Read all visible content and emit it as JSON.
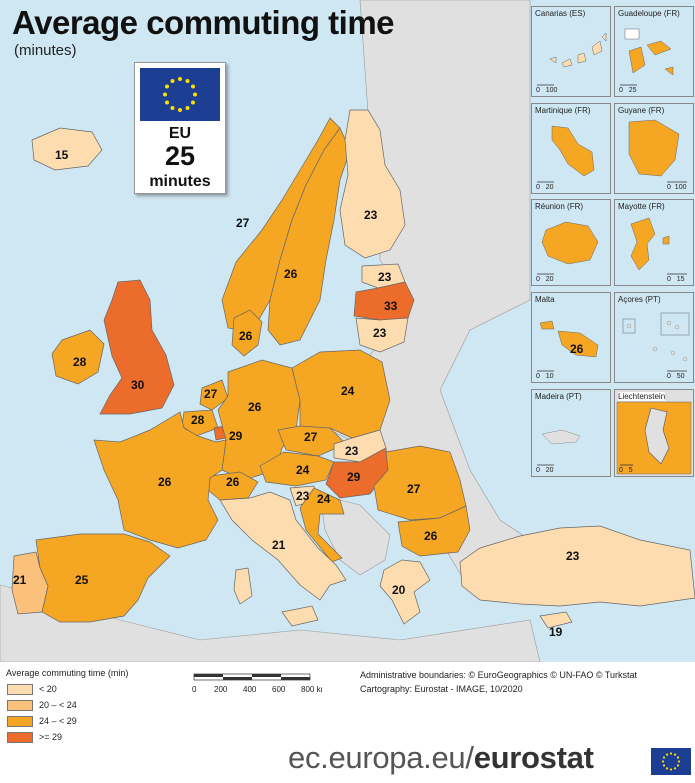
{
  "title": "Average commuting time",
  "subtitle": "(minutes)",
  "eu_box": {
    "code": "EU",
    "value": "25",
    "unit": "minutes"
  },
  "colors": {
    "lt20": "#fddcb0",
    "c20_24": "#fbc07a",
    "c24_29": "#f5a623",
    "ge29": "#ec6c2c",
    "sea": "#cfe7f2",
    "nodata": "#e0e0e0"
  },
  "countries": [
    {
      "name": "Iceland",
      "value": "15"
    },
    {
      "name": "Norway",
      "value": "27"
    },
    {
      "name": "Sweden",
      "value": "26"
    },
    {
      "name": "Finland",
      "value": "23"
    },
    {
      "name": "Estonia",
      "value": "23"
    },
    {
      "name": "Latvia",
      "value": "33"
    },
    {
      "name": "Lithuania",
      "value": "23"
    },
    {
      "name": "Denmark",
      "value": "26"
    },
    {
      "name": "Ireland",
      "value": "28"
    },
    {
      "name": "United Kingdom",
      "value": "30"
    },
    {
      "name": "Netherlands",
      "value": "27"
    },
    {
      "name": "Belgium",
      "value": "28"
    },
    {
      "name": "Luxembourg",
      "value": "29"
    },
    {
      "name": "Germany",
      "value": "26"
    },
    {
      "name": "Poland",
      "value": "24"
    },
    {
      "name": "Czechia",
      "value": "27"
    },
    {
      "name": "Slovakia",
      "value": "23"
    },
    {
      "name": "Austria",
      "value": "24"
    },
    {
      "name": "Hungary",
      "value": "29"
    },
    {
      "name": "Switzerland",
      "value": "26"
    },
    {
      "name": "Slovenia",
      "value": "23"
    },
    {
      "name": "Croatia",
      "value": "24"
    },
    {
      "name": "France",
      "value": "26"
    },
    {
      "name": "Italy",
      "value": "21"
    },
    {
      "name": "Spain",
      "value": "25"
    },
    {
      "name": "Portugal",
      "value": "21"
    },
    {
      "name": "Romania",
      "value": "27"
    },
    {
      "name": "Bulgaria",
      "value": "26"
    },
    {
      "name": "Greece",
      "value": "20"
    },
    {
      "name": "Turkey",
      "value": "23"
    },
    {
      "name": "Cyprus",
      "value": "19"
    }
  ],
  "insets": [
    {
      "title": "Canarias (ES)",
      "scale": [
        "0",
        "100"
      ]
    },
    {
      "title": "Guadeloupe (FR)",
      "scale": [
        "0",
        "25"
      ]
    },
    {
      "title": "Martinique (FR)",
      "scale": [
        "0",
        "20"
      ]
    },
    {
      "title": "Guyane (FR)",
      "scale": [
        "0",
        "100"
      ]
    },
    {
      "title": "Réunion (FR)",
      "scale": [
        "0",
        "20"
      ]
    },
    {
      "title": "Mayotte (FR)",
      "scale": [
        "0",
        "15"
      ]
    },
    {
      "title": "Malta",
      "scale": [
        "0",
        "10"
      ],
      "value": "26"
    },
    {
      "title": "Açores (PT)",
      "scale": [
        "0",
        "50"
      ]
    },
    {
      "title": "Madeira (PT)",
      "scale": [
        "0",
        "20"
      ]
    },
    {
      "title": "Liechtenstein",
      "scale": [
        "0",
        "5"
      ]
    }
  ],
  "legend": {
    "title": "Average commuting time (min)",
    "items": [
      "< 20",
      "20 – < 24",
      "24 – < 29",
      ">= 29"
    ]
  },
  "scalebar": {
    "ticks": [
      "0",
      "200",
      "400",
      "600",
      "800 km"
    ]
  },
  "credits": {
    "boundaries": "Administrative boundaries: © EuroGeographics © UN-FAO © Turkstat",
    "cartography": "Cartography: Eurostat - IMAGE, 10/2020"
  },
  "footer": {
    "url_prefix": "ec.europa.eu/",
    "brand": "eurostat"
  }
}
